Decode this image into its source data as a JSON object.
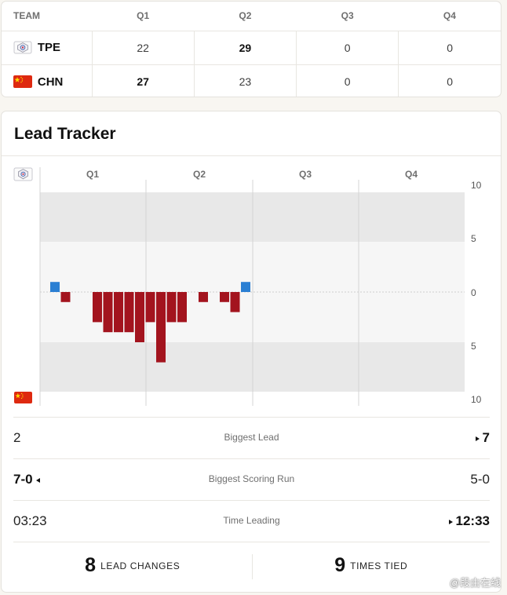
{
  "score_table": {
    "headers": [
      "TEAM",
      "Q1",
      "Q2",
      "Q3",
      "Q4"
    ],
    "rows": [
      {
        "team": "TPE",
        "logo": "tpe-emblem-icon",
        "q1": "22",
        "q2": "29",
        "q3": "0",
        "q4": "0"
      },
      {
        "team": "CHN",
        "logo": "china-flag-icon",
        "q1": "27",
        "q2": "23",
        "q3": "0",
        "q4": "0"
      }
    ]
  },
  "lead_tracker": {
    "title": "Lead Tracker",
    "top_team_logo": "tpe-emblem-icon",
    "bottom_team_logo": "china-flag-icon",
    "colors": {
      "tpe": "#2b7fd3",
      "chn": "#a3141e"
    }
  },
  "chart_data": {
    "type": "bar",
    "quarters": [
      "Q1",
      "Q2",
      "Q3",
      "Q4"
    ],
    "y_ticks": [
      "10",
      "5",
      "0",
      "5",
      "10"
    ],
    "ylim": [
      -10,
      10
    ],
    "grid": true,
    "note": "positive = TPE lead, negative = CHN lead; one bar per scoring event in chronological order",
    "events": [
      1,
      -1,
      0,
      0,
      -3,
      -4,
      -4,
      -4,
      -5,
      -3,
      -7,
      -3,
      -3,
      0,
      -1,
      0,
      -1,
      -2,
      1
    ]
  },
  "stats": [
    {
      "label": "Biggest Lead",
      "left": "2",
      "right": "7",
      "winner": "right"
    },
    {
      "label": "Biggest Scoring Run",
      "left": "7-0",
      "right": "5-0",
      "winner": "left"
    },
    {
      "label": "Time Leading",
      "left": "03:23",
      "right": "12:33",
      "winner": "right"
    }
  ],
  "totals": {
    "lead_changes": {
      "value": "8",
      "label": "LEAD CHANGES"
    },
    "times_tied": {
      "value": "9",
      "label": "TIMES TIED"
    }
  },
  "watermark": "@段由在线"
}
